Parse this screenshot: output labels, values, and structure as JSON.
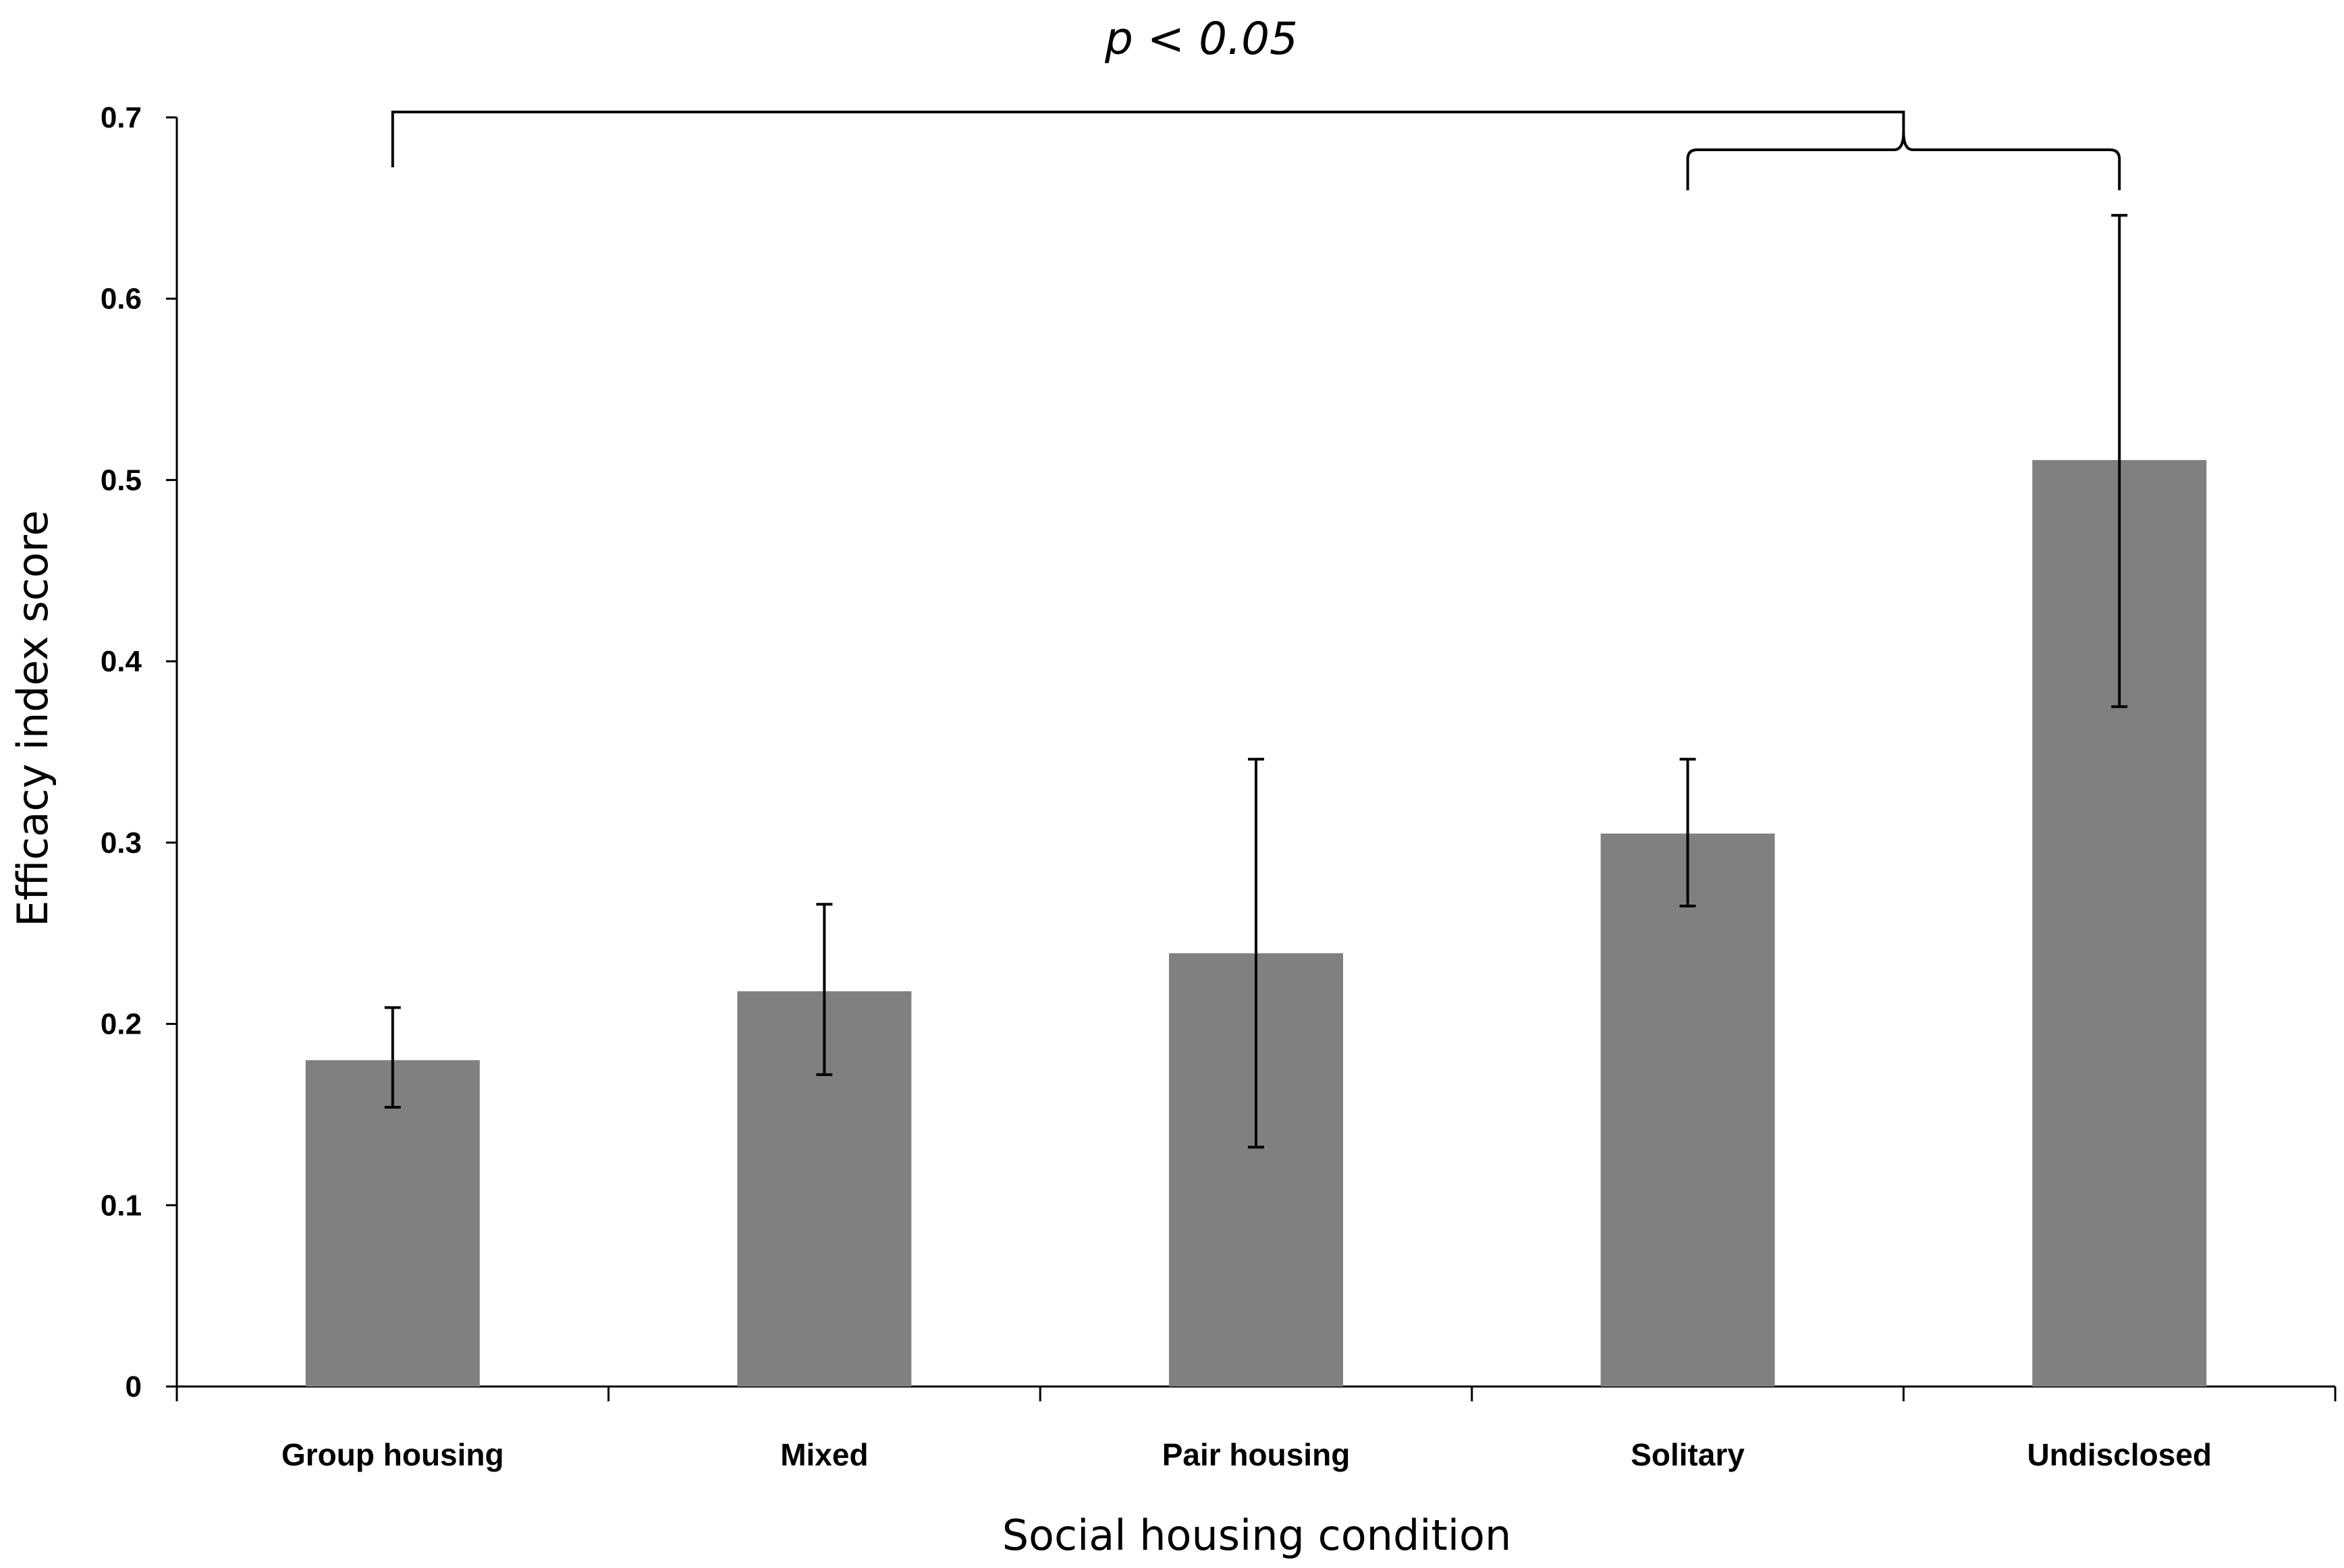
{
  "chart_data": {
    "type": "bar",
    "title": "",
    "xlabel": "Social housing condition",
    "ylabel": "Efficacy index score",
    "categories": [
      "Group housing",
      "Mixed",
      "Pair housing",
      "Solitary",
      "Undisclosed"
    ],
    "values": [
      0.18,
      0.218,
      0.239,
      0.305,
      0.511
    ],
    "error_low": [
      0.154,
      0.172,
      0.132,
      0.265,
      0.375
    ],
    "error_high": [
      0.209,
      0.266,
      0.346,
      0.346,
      0.646
    ],
    "ylim": [
      0,
      0.7
    ],
    "yticks": [
      0,
      0.1,
      0.2,
      0.3,
      0.4,
      0.5,
      0.6,
      0.7
    ],
    "ytick_labels": [
      "0",
      "0.1",
      "0.2",
      "0.3",
      "0.4",
      "0.5",
      "0.6",
      "0.7"
    ],
    "grid": false,
    "bar_color": "#808080",
    "annotation": {
      "text": "p < 0.05",
      "comparison": [
        "Group housing",
        [
          "Solitary",
          "Undisclosed"
        ]
      ]
    }
  }
}
